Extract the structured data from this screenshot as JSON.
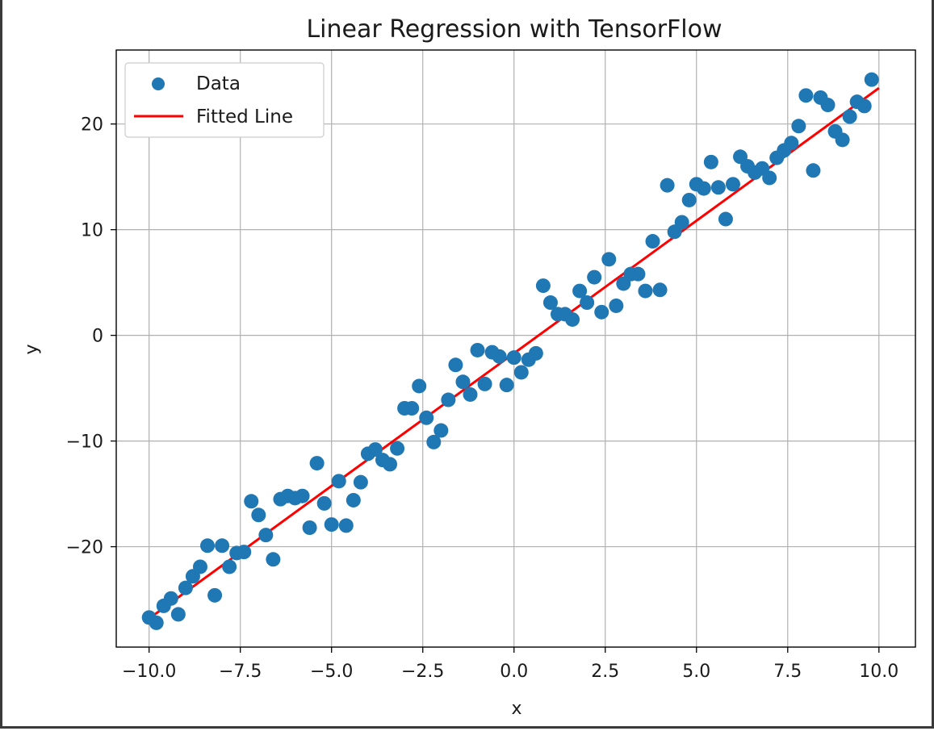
{
  "chart_data": {
    "type": "scatter",
    "title": "Linear Regression with TensorFlow",
    "xlabel": "x",
    "ylabel": "y",
    "xlim": [
      -10.9,
      11.0
    ],
    "ylim": [
      -29.5,
      27.0
    ],
    "grid": true,
    "legend_position": "top-left",
    "x_ticks": [
      -10.0,
      -7.5,
      -5.0,
      -2.5,
      0.0,
      2.5,
      5.0,
      7.5,
      10.0
    ],
    "x_tick_labels": [
      "−10.0",
      "−7.5",
      "−5.0",
      "−2.5",
      "0.0",
      "2.5",
      "5.0",
      "7.5",
      "10.0"
    ],
    "y_ticks": [
      -20,
      -10,
      0,
      10,
      20
    ],
    "y_tick_labels": [
      "−20",
      "−10",
      "0",
      "10",
      "20"
    ],
    "series": [
      {
        "name": "Data",
        "kind": "scatter",
        "color": "#1f77b4",
        "points": [
          [
            -10.0,
            -26.7
          ],
          [
            -9.8,
            -27.2
          ],
          [
            -9.6,
            -25.6
          ],
          [
            -9.4,
            -24.9
          ],
          [
            -9.2,
            -26.4
          ],
          [
            -9.0,
            -23.9
          ],
          [
            -8.8,
            -22.8
          ],
          [
            -8.6,
            -21.9
          ],
          [
            -8.4,
            -19.9
          ],
          [
            -8.2,
            -24.6
          ],
          [
            -8.0,
            -19.9
          ],
          [
            -7.8,
            -21.9
          ],
          [
            -7.6,
            -20.6
          ],
          [
            -7.4,
            -20.5
          ],
          [
            -7.2,
            -15.7
          ],
          [
            -7.0,
            -17.0
          ],
          [
            -6.8,
            -18.9
          ],
          [
            -6.6,
            -21.2
          ],
          [
            -6.4,
            -15.5
          ],
          [
            -6.2,
            -15.2
          ],
          [
            -6.0,
            -15.4
          ],
          [
            -5.8,
            -15.2
          ],
          [
            -5.6,
            -18.2
          ],
          [
            -5.4,
            -12.1
          ],
          [
            -5.2,
            -15.9
          ],
          [
            -5.0,
            -17.9
          ],
          [
            -4.8,
            -13.8
          ],
          [
            -4.6,
            -18.0
          ],
          [
            -4.4,
            -15.6
          ],
          [
            -4.2,
            -13.9
          ],
          [
            -4.0,
            -11.2
          ],
          [
            -3.8,
            -10.8
          ],
          [
            -3.6,
            -11.8
          ],
          [
            -3.4,
            -12.2
          ],
          [
            -3.2,
            -10.7
          ],
          [
            -3.0,
            -6.9
          ],
          [
            -2.8,
            -6.9
          ],
          [
            -2.6,
            -4.8
          ],
          [
            -2.4,
            -7.8
          ],
          [
            -2.2,
            -10.1
          ],
          [
            -2.0,
            -9.0
          ],
          [
            -1.8,
            -6.1
          ],
          [
            -1.6,
            -2.8
          ],
          [
            -1.4,
            -4.4
          ],
          [
            -1.2,
            -5.6
          ],
          [
            -1.0,
            -1.4
          ],
          [
            -0.8,
            -4.6
          ],
          [
            -0.6,
            -1.6
          ],
          [
            -0.4,
            -2.0
          ],
          [
            -0.2,
            -4.7
          ],
          [
            0.0,
            -2.1
          ],
          [
            0.2,
            -3.5
          ],
          [
            0.4,
            -2.3
          ],
          [
            0.6,
            -1.7
          ],
          [
            0.8,
            4.7
          ],
          [
            1.0,
            3.1
          ],
          [
            1.2,
            2.0
          ],
          [
            1.4,
            2.0
          ],
          [
            1.6,
            1.5
          ],
          [
            1.8,
            4.2
          ],
          [
            2.0,
            3.1
          ],
          [
            2.2,
            5.5
          ],
          [
            2.4,
            2.2
          ],
          [
            2.6,
            7.2
          ],
          [
            2.8,
            2.8
          ],
          [
            3.0,
            4.9
          ],
          [
            3.2,
            5.8
          ],
          [
            3.4,
            5.8
          ],
          [
            3.6,
            4.2
          ],
          [
            3.8,
            8.9
          ],
          [
            4.0,
            4.3
          ],
          [
            4.2,
            14.2
          ],
          [
            4.4,
            9.8
          ],
          [
            4.6,
            10.7
          ],
          [
            4.8,
            12.8
          ],
          [
            5.0,
            14.3
          ],
          [
            5.2,
            13.9
          ],
          [
            5.4,
            16.4
          ],
          [
            5.6,
            14.0
          ],
          [
            5.8,
            11.0
          ],
          [
            6.0,
            14.3
          ],
          [
            6.2,
            16.9
          ],
          [
            6.4,
            16.0
          ],
          [
            6.6,
            15.4
          ],
          [
            6.8,
            15.8
          ],
          [
            7.0,
            14.9
          ],
          [
            7.2,
            16.8
          ],
          [
            7.4,
            17.5
          ],
          [
            7.6,
            18.2
          ],
          [
            7.8,
            19.8
          ],
          [
            8.0,
            22.7
          ],
          [
            8.2,
            15.6
          ],
          [
            8.4,
            22.5
          ],
          [
            8.6,
            21.8
          ],
          [
            8.8,
            19.3
          ],
          [
            9.0,
            18.5
          ],
          [
            9.2,
            20.7
          ],
          [
            9.4,
            22.1
          ],
          [
            9.6,
            21.7
          ],
          [
            9.8,
            24.2
          ]
        ]
      },
      {
        "name": "Fitted Line",
        "kind": "line",
        "color": "#ff0000",
        "points": [
          [
            -10.0,
            -26.8
          ],
          [
            10.0,
            23.4
          ]
        ]
      }
    ]
  },
  "colors": {
    "data": "#1f77b4",
    "fit": "#ff0000",
    "grid": "#b0b0b0",
    "axes": "#000000"
  }
}
